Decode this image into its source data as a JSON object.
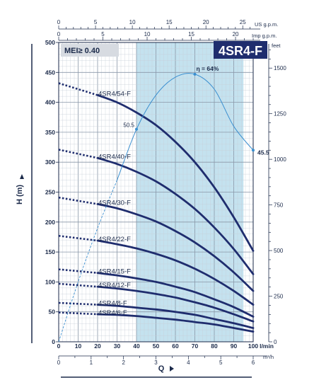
{
  "chart_data": {
    "type": "line",
    "model": "4SR4-F",
    "mei": "MEI≥ 0.40",
    "ylabel": "H (m)",
    "xlabel": "Q",
    "ylim": [
      0,
      500
    ],
    "xlim": [
      0,
      100
    ],
    "units": {
      "x_lmin": "l/min",
      "x_m3h": "m³/h",
      "top_us": "US g.p.m.",
      "top_imp": "Imp g.p.m.",
      "right_ft": "feet"
    },
    "ticks": {
      "x_lmin": [
        0,
        10,
        20,
        30,
        40,
        50,
        60,
        70,
        80,
        90,
        100
      ],
      "y_m": [
        0,
        50,
        100,
        150,
        200,
        250,
        300,
        350,
        400,
        450,
        500
      ],
      "x_m3h": [
        0,
        1,
        2,
        3,
        4,
        5,
        6
      ],
      "top_us": [
        0,
        5,
        10,
        15,
        20,
        25
      ],
      "top_imp": [
        0,
        5,
        10,
        15,
        20
      ],
      "right_ft": [
        0,
        250,
        500,
        750,
        1000,
        1250,
        1500
      ]
    },
    "recommended_range": [
      40,
      95
    ],
    "series": [
      {
        "name": "4SR4/54-F",
        "x": [
          0,
          20,
          30,
          40,
          50,
          60,
          70,
          80,
          90,
          100
        ],
        "y": [
          432,
          412,
          400,
          383,
          362,
          334,
          300,
          258,
          208,
          152
        ]
      },
      {
        "name": "4SR4/40-F",
        "x": [
          0,
          20,
          30,
          40,
          50,
          60,
          70,
          80,
          90,
          100
        ],
        "y": [
          321,
          307,
          297,
          284,
          268,
          247,
          222,
          191,
          155,
          113
        ]
      },
      {
        "name": "4SR4/30-F",
        "x": [
          0,
          20,
          30,
          40,
          50,
          60,
          70,
          80,
          90,
          100
        ],
        "y": [
          241,
          230,
          223,
          213,
          201,
          185,
          166,
          143,
          116,
          85
        ]
      },
      {
        "name": "4SR4/22-F",
        "x": [
          0,
          20,
          30,
          40,
          50,
          60,
          70,
          80,
          90,
          100
        ],
        "y": [
          177,
          169,
          163,
          156,
          147,
          136,
          122,
          105,
          85,
          62
        ]
      },
      {
        "name": "4SR4/15-F",
        "x": [
          0,
          20,
          30,
          40,
          50,
          60,
          70,
          80,
          90,
          100
        ],
        "y": [
          121,
          115,
          111,
          106,
          100,
          92,
          83,
          71,
          58,
          42
        ]
      },
      {
        "name": "4SR4/12-F",
        "x": [
          0,
          20,
          30,
          40,
          50,
          60,
          70,
          80,
          90,
          100
        ],
        "y": [
          97,
          92,
          89,
          85,
          80,
          74,
          66,
          57,
          46,
          34
        ]
      },
      {
        "name": "4SR4/8-F",
        "x": [
          0,
          20,
          30,
          40,
          50,
          60,
          70,
          80,
          90,
          100
        ],
        "y": [
          65,
          62,
          60,
          57,
          54,
          50,
          45,
          38,
          31,
          23
        ]
      },
      {
        "name": "4SR4/6-F",
        "x": [
          0,
          20,
          30,
          40,
          50,
          60,
          70,
          80,
          90,
          100
        ],
        "y": [
          49,
          46,
          45,
          43,
          40,
          37,
          33,
          29,
          23,
          17
        ]
      }
    ],
    "efficiency_curve": {
      "label": "η = 64%",
      "peak_label": "64%",
      "x": [
        0,
        10,
        20,
        30,
        40,
        50,
        60,
        70,
        80,
        90,
        100
      ],
      "y": [
        0,
        100,
        190,
        270,
        355,
        412,
        442,
        447,
        422,
        360,
        320
      ],
      "left_point_label": "50.5",
      "right_point_label": "45.5"
    }
  }
}
